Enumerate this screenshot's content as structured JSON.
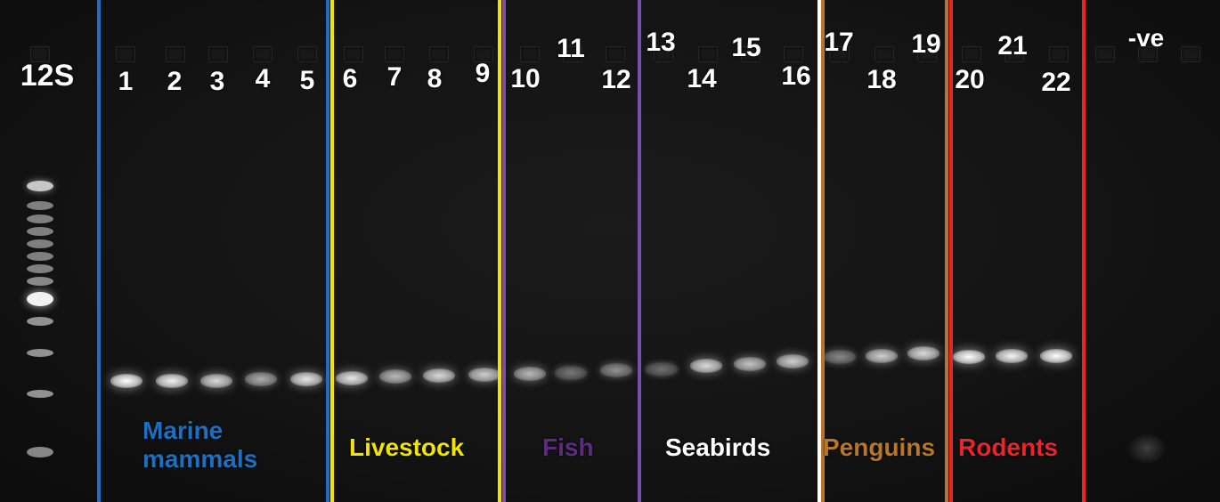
{
  "marker": {
    "label": "12S"
  },
  "negative_control": {
    "label": "-ve"
  },
  "lanes": [
    {
      "label": "1",
      "intensity": 1.0
    },
    {
      "label": "2",
      "intensity": 0.95
    },
    {
      "label": "3",
      "intensity": 0.85
    },
    {
      "label": "4",
      "intensity": 0.65
    },
    {
      "label": "5",
      "intensity": 0.9
    },
    {
      "label": "6",
      "intensity": 0.9
    },
    {
      "label": "7",
      "intensity": 0.7
    },
    {
      "label": "8",
      "intensity": 0.85
    },
    {
      "label": "9",
      "intensity": 0.8
    },
    {
      "label": "10",
      "intensity": 0.7
    },
    {
      "label": "11",
      "intensity": 0.35
    },
    {
      "label": "12",
      "intensity": 0.5
    },
    {
      "label": "13",
      "intensity": 0.3
    },
    {
      "label": "14",
      "intensity": 0.85
    },
    {
      "label": "15",
      "intensity": 0.75
    },
    {
      "label": "16",
      "intensity": 0.8
    },
    {
      "label": "17",
      "intensity": 0.45
    },
    {
      "label": "18",
      "intensity": 0.8
    },
    {
      "label": "19",
      "intensity": 0.85
    },
    {
      "label": "20",
      "intensity": 1.0
    },
    {
      "label": "21",
      "intensity": 0.95
    },
    {
      "label": "22",
      "intensity": 1.0
    }
  ],
  "groups": [
    {
      "name": "Marine mammals",
      "color": "#1e6fc0"
    },
    {
      "name": "Livestock",
      "color": "#f2e400"
    },
    {
      "name": "Fish",
      "color": "#5b2d7e"
    },
    {
      "name": "Seabirds",
      "color": "#ffffff"
    },
    {
      "name": "Penguins",
      "color": "#b8762a"
    },
    {
      "name": "Rodents",
      "color": "#e8252a"
    }
  ],
  "colors": {
    "marine_mammals_line": "#1e6fc0",
    "livestock_line": "#f2e400",
    "fish_line": "#7b4fa8",
    "seabirds_line": "#ffffff",
    "penguins_line": "#b8762a",
    "rodents_line": "#e8252a"
  }
}
